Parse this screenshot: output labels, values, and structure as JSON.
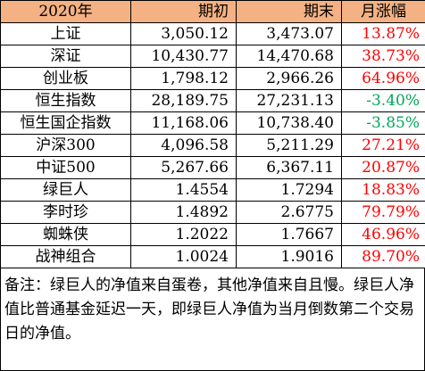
{
  "table": {
    "headers": [
      "2020年",
      "期初",
      "期末",
      "月涨幅"
    ],
    "rows": [
      {
        "name": "上证",
        "start": "3,050.12",
        "end": "3,473.07",
        "change": "13.87%",
        "dir": "pos"
      },
      {
        "name": "深证",
        "start": "10,430.77",
        "end": "14,470.68",
        "change": "38.73%",
        "dir": "pos"
      },
      {
        "name": "创业板",
        "start": "1,798.12",
        "end": "2,966.26",
        "change": "64.96%",
        "dir": "pos"
      },
      {
        "name": "恒生指数",
        "start": "28,189.75",
        "end": "27,231.13",
        "change": "-3.40%",
        "dir": "neg"
      },
      {
        "name": "恒生国企指数",
        "start": "11,168.06",
        "end": "10,738.40",
        "change": "-3.85%",
        "dir": "neg"
      },
      {
        "name": "沪深300",
        "start": "4,096.58",
        "end": "5,211.29",
        "change": "27.21%",
        "dir": "pos"
      },
      {
        "name": "中证500",
        "start": "5,267.66",
        "end": "6,367.11",
        "change": "20.87%",
        "dir": "pos"
      },
      {
        "name": "绿巨人",
        "start": "1.4554",
        "end": "1.7294",
        "change": "18.83%",
        "dir": "pos"
      },
      {
        "name": "李时珍",
        "start": "1.4892",
        "end": "2.6775",
        "change": "79.79%",
        "dir": "pos"
      },
      {
        "name": "蜘蛛侠",
        "start": "1.2022",
        "end": "1.7667",
        "change": "46.96%",
        "dir": "pos"
      },
      {
        "name": "战神组合",
        "start": "1.0024",
        "end": "1.9016",
        "change": "89.70%",
        "dir": "pos"
      }
    ]
  },
  "note": "备注：绿巨人的净值来自蛋卷，其他净值来自且慢。绿巨人净值比普通基金延迟一天，即绿巨人净值为当月倒数第二个交易日的净值。",
  "colors": {
    "header_bg": "#f4b183",
    "positive": "#ff0000",
    "negative": "#00a65a"
  }
}
